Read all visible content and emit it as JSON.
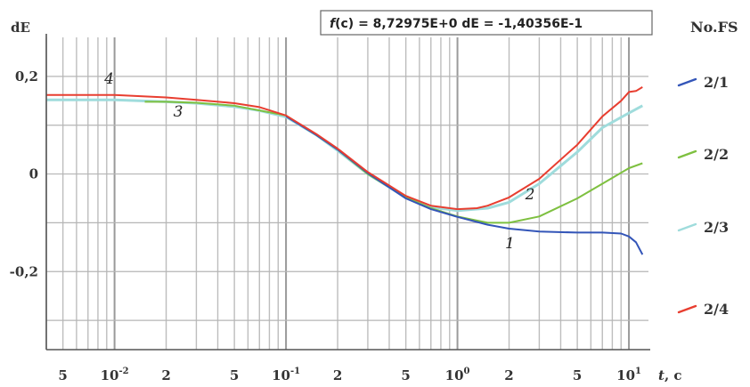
{
  "chart_data": {
    "type": "line",
    "ylabel": "dE",
    "xlabel_italic": "t",
    "xlabel_unit": ", c",
    "x_scale": "log",
    "xlim": [
      0.004,
      13
    ],
    "ylim": [
      -0.36,
      0.28
    ],
    "grid": true,
    "annotation": {
      "f_label": "f",
      "f_text": "(c) = 8,72975E+0   dE = -1,40356E-1"
    },
    "legend": {
      "title": "No.FS",
      "placement": "right",
      "items": [
        {
          "label": "2/1",
          "color": "#3355b8"
        },
        {
          "label": "2/2",
          "color": "#7ec040"
        },
        {
          "label": "2/3",
          "color": "#9fdcdc"
        },
        {
          "label": "2/4",
          "color": "#e83e30"
        }
      ]
    },
    "y_ticks": [
      {
        "value": 0.2,
        "label": "0,2"
      },
      {
        "value": 0,
        "label": "0"
      },
      {
        "value": -0.2,
        "label": "-0,2"
      }
    ],
    "x_ticks": [
      {
        "value": 0.005,
        "base": "5",
        "exp": ""
      },
      {
        "value": 0.01,
        "base": "10",
        "exp": "-2"
      },
      {
        "value": 0.02,
        "base": "2",
        "exp": ""
      },
      {
        "value": 0.05,
        "base": "5",
        "exp": ""
      },
      {
        "value": 0.1,
        "base": "10",
        "exp": "-1"
      },
      {
        "value": 0.2,
        "base": "2",
        "exp": ""
      },
      {
        "value": 0.5,
        "base": "5",
        "exp": ""
      },
      {
        "value": 1,
        "base": "10",
        "exp": "0"
      },
      {
        "value": 2,
        "base": "2",
        "exp": ""
      },
      {
        "value": 5,
        "base": "5",
        "exp": ""
      },
      {
        "value": 10,
        "base": "10",
        "exp": "1"
      }
    ],
    "curve_labels": [
      {
        "text": "4",
        "x": 0.0093,
        "y": 0.185
      },
      {
        "text": "3",
        "x": 0.0235,
        "y": 0.118
      },
      {
        "text": "2",
        "x": 2.65,
        "y": -0.052
      },
      {
        "text": "1",
        "x": 2.02,
        "y": -0.152
      }
    ],
    "series": [
      {
        "name": "2/1",
        "color": "#3355b8",
        "x": [
          0.1,
          0.15,
          0.2,
          0.3,
          0.5,
          0.7,
          1.0,
          1.5,
          2,
          3,
          5,
          7,
          9,
          10,
          11,
          12
        ],
        "y": [
          0.118,
          0.08,
          0.05,
          0.002,
          -0.05,
          -0.072,
          -0.088,
          -0.104,
          -0.112,
          -0.118,
          -0.12,
          -0.12,
          -0.122,
          -0.128,
          -0.14,
          -0.165
        ]
      },
      {
        "name": "2/2",
        "color": "#7ec040",
        "x": [
          0.015,
          0.02,
          0.03,
          0.05,
          0.1,
          0.15,
          0.2,
          0.3,
          0.5,
          0.7,
          1.0,
          1.5,
          2,
          3,
          5,
          7,
          10,
          12
        ],
        "y": [
          0.148,
          0.148,
          0.146,
          0.14,
          0.12,
          0.08,
          0.05,
          0.0,
          -0.048,
          -0.07,
          -0.087,
          -0.1,
          -0.1,
          -0.087,
          -0.05,
          -0.02,
          0.012,
          0.022
        ]
      },
      {
        "name": "2/3",
        "color": "#9fdcdc",
        "x": [
          0.004,
          0.005,
          0.01,
          0.02,
          0.03,
          0.05,
          0.07,
          0.1,
          0.15,
          0.2,
          0.3,
          0.5,
          0.7,
          1.0,
          1.5,
          2,
          3,
          5,
          7,
          10,
          12
        ],
        "y": [
          0.152,
          0.152,
          0.152,
          0.148,
          0.145,
          0.138,
          0.13,
          0.117,
          0.08,
          0.048,
          0.0,
          -0.048,
          -0.068,
          -0.075,
          -0.07,
          -0.058,
          -0.02,
          0.045,
          0.095,
          0.125,
          0.14
        ]
      },
      {
        "name": "2/4",
        "color": "#e83e30",
        "x": [
          0.004,
          0.005,
          0.01,
          0.02,
          0.03,
          0.05,
          0.07,
          0.1,
          0.15,
          0.2,
          0.3,
          0.5,
          0.7,
          1.0,
          1.3,
          1.5,
          2,
          3,
          5,
          7,
          9,
          10,
          11,
          12
        ],
        "y": [
          0.162,
          0.162,
          0.162,
          0.157,
          0.152,
          0.145,
          0.137,
          0.12,
          0.082,
          0.052,
          0.004,
          -0.045,
          -0.065,
          -0.072,
          -0.07,
          -0.065,
          -0.048,
          -0.01,
          0.06,
          0.118,
          0.15,
          0.168,
          0.17,
          0.178
        ]
      }
    ]
  }
}
